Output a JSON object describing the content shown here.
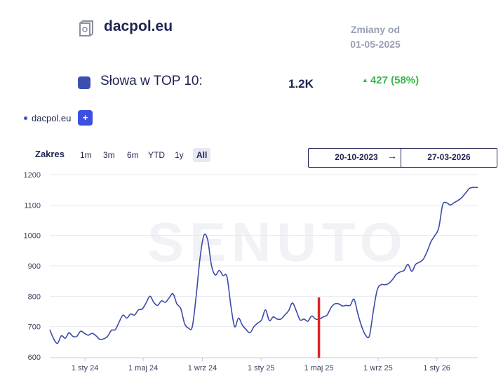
{
  "header": {
    "site_name": "dacpol.eu",
    "changes_line1": "Zmiany od",
    "changes_line2": "01-05-2025"
  },
  "metric": {
    "label": "Słowa w TOP 10:",
    "value": "1.2K",
    "change": "427 (58%)",
    "swatch_color": "#3c4fb0",
    "change_color": "#3bb54a"
  },
  "legend": {
    "series_label": "dacpol.eu",
    "add_label": "+"
  },
  "range": {
    "label": "Zakres",
    "options": [
      "1m",
      "3m",
      "6m",
      "YTD",
      "1y",
      "All"
    ],
    "active": "All",
    "date_from": "20-10-2023",
    "date_to": "27-03-2026",
    "arrow": "→"
  },
  "watermark": "SENUTO",
  "chart_data": {
    "type": "line",
    "title": "",
    "xlabel": "",
    "ylabel": "",
    "ylim": [
      600,
      1200
    ],
    "yticks": [
      600,
      700,
      800,
      900,
      1000,
      1100,
      1200
    ],
    "xticks": [
      "1 sty 24",
      "1 maj 24",
      "1 wrz 24",
      "1 sty 25",
      "1 maj 25",
      "1 wrz 25",
      "1 sty 26"
    ],
    "grid": true,
    "line_color": "#3c4aa8",
    "marker": {
      "date": "2025-05-01",
      "color": "#e02424"
    },
    "series": [
      {
        "values": [
          [
            "2023-10-20",
            690
          ],
          [
            "2023-10-28",
            660
          ],
          [
            "2023-11-05",
            645
          ],
          [
            "2023-11-13",
            670
          ],
          [
            "2023-11-21",
            662
          ],
          [
            "2023-11-29",
            680
          ],
          [
            "2023-12-07",
            668
          ],
          [
            "2023-12-15",
            668
          ],
          [
            "2023-12-23",
            685
          ],
          [
            "2023-12-31",
            678
          ],
          [
            "2024-01-08",
            672
          ],
          [
            "2024-01-16",
            678
          ],
          [
            "2024-01-24",
            670
          ],
          [
            "2024-02-01",
            658
          ],
          [
            "2024-02-09",
            660
          ],
          [
            "2024-02-17",
            668
          ],
          [
            "2024-02-25",
            688
          ],
          [
            "2024-03-04",
            690
          ],
          [
            "2024-03-12",
            715
          ],
          [
            "2024-03-20",
            738
          ],
          [
            "2024-03-28",
            728
          ],
          [
            "2024-04-05",
            742
          ],
          [
            "2024-04-13",
            738
          ],
          [
            "2024-04-21",
            755
          ],
          [
            "2024-04-29",
            758
          ],
          [
            "2024-05-07",
            778
          ],
          [
            "2024-05-15",
            800
          ],
          [
            "2024-05-23",
            780
          ],
          [
            "2024-05-31",
            770
          ],
          [
            "2024-06-08",
            785
          ],
          [
            "2024-06-16",
            780
          ],
          [
            "2024-06-24",
            795
          ],
          [
            "2024-07-02",
            808
          ],
          [
            "2024-07-10",
            775
          ],
          [
            "2024-07-18",
            760
          ],
          [
            "2024-07-26",
            710
          ],
          [
            "2024-08-03",
            695
          ],
          [
            "2024-08-11",
            700
          ],
          [
            "2024-08-19",
            800
          ],
          [
            "2024-08-27",
            925
          ],
          [
            "2024-09-04",
            1000
          ],
          [
            "2024-09-12",
            985
          ],
          [
            "2024-09-20",
            900
          ],
          [
            "2024-09-28",
            870
          ],
          [
            "2024-10-06",
            885
          ],
          [
            "2024-10-14",
            868
          ],
          [
            "2024-10-22",
            865
          ],
          [
            "2024-10-30",
            770
          ],
          [
            "2024-11-07",
            700
          ],
          [
            "2024-11-15",
            728
          ],
          [
            "2024-11-23",
            705
          ],
          [
            "2024-12-01",
            690
          ],
          [
            "2024-12-09",
            680
          ],
          [
            "2024-12-17",
            700
          ],
          [
            "2024-12-25",
            712
          ],
          [
            "2025-01-02",
            722
          ],
          [
            "2025-01-10",
            755
          ],
          [
            "2025-01-18",
            720
          ],
          [
            "2025-01-26",
            732
          ],
          [
            "2025-02-03",
            725
          ],
          [
            "2025-02-11",
            725
          ],
          [
            "2025-02-19",
            738
          ],
          [
            "2025-02-27",
            752
          ],
          [
            "2025-03-07",
            778
          ],
          [
            "2025-03-15",
            752
          ],
          [
            "2025-03-23",
            722
          ],
          [
            "2025-03-31",
            725
          ],
          [
            "2025-04-08",
            718
          ],
          [
            "2025-04-16",
            735
          ],
          [
            "2025-04-24",
            725
          ],
          [
            "2025-05-02",
            725
          ],
          [
            "2025-05-10",
            732
          ],
          [
            "2025-05-18",
            738
          ],
          [
            "2025-05-26",
            762
          ],
          [
            "2025-06-03",
            775
          ],
          [
            "2025-06-11",
            775
          ],
          [
            "2025-06-19",
            768
          ],
          [
            "2025-06-27",
            770
          ],
          [
            "2025-07-05",
            770
          ],
          [
            "2025-07-13",
            790
          ],
          [
            "2025-07-21",
            742
          ],
          [
            "2025-07-29",
            700
          ],
          [
            "2025-08-06",
            672
          ],
          [
            "2025-08-14",
            670
          ],
          [
            "2025-08-22",
            750
          ],
          [
            "2025-08-30",
            820
          ],
          [
            "2025-09-07",
            838
          ],
          [
            "2025-09-15",
            838
          ],
          [
            "2025-09-23",
            842
          ],
          [
            "2025-10-01",
            855
          ],
          [
            "2025-10-09",
            872
          ],
          [
            "2025-10-17",
            880
          ],
          [
            "2025-10-25",
            885
          ],
          [
            "2025-11-02",
            905
          ],
          [
            "2025-11-10",
            882
          ],
          [
            "2025-11-18",
            905
          ],
          [
            "2025-11-26",
            912
          ],
          [
            "2025-12-04",
            922
          ],
          [
            "2025-12-12",
            948
          ],
          [
            "2025-12-20",
            980
          ],
          [
            "2025-12-28",
            1000
          ],
          [
            "2026-01-05",
            1025
          ],
          [
            "2026-01-13",
            1100
          ],
          [
            "2026-01-21",
            1108
          ],
          [
            "2026-01-29",
            1100
          ],
          [
            "2026-02-06",
            1108
          ],
          [
            "2026-02-14",
            1115
          ],
          [
            "2026-02-22",
            1125
          ],
          [
            "2026-03-02",
            1140
          ],
          [
            "2026-03-10",
            1155
          ],
          [
            "2026-03-18",
            1158
          ],
          [
            "2026-03-27",
            1158
          ]
        ]
      }
    ]
  }
}
